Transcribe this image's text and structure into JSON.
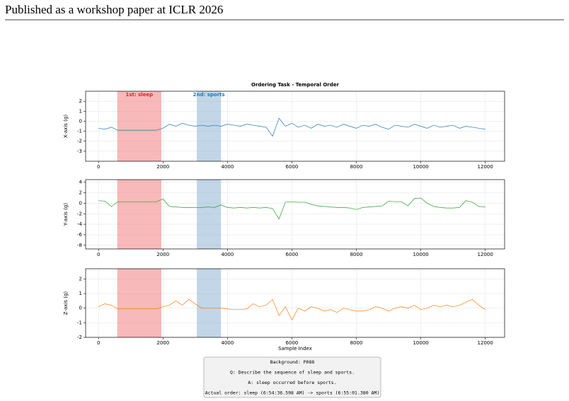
{
  "header": "Published as a workshop paper at ICLR 2026",
  "chart_data": [
    {
      "type": "line",
      "title": "Ordering Task - Temporal Order",
      "ylabel": "X-axis (g)",
      "color": "#1f77b4",
      "grid": true,
      "x": [
        0,
        200,
        400,
        600,
        800,
        1000,
        1200,
        1400,
        1600,
        1800,
        2000,
        2200,
        2400,
        2600,
        2800,
        3000,
        3200,
        3400,
        3600,
        3800,
        4000,
        4200,
        4400,
        4600,
        4800,
        5000,
        5200,
        5400,
        5600,
        5800,
        6000,
        6200,
        6400,
        6600,
        6800,
        7000,
        7200,
        7400,
        7600,
        7800,
        8000,
        8200,
        8400,
        8600,
        8800,
        9000,
        9200,
        9400,
        9600,
        9800,
        10000,
        10200,
        10400,
        10600,
        10800,
        11000,
        11200,
        11400,
        11600,
        11800,
        12000
      ],
      "values": [
        -0.7,
        -0.8,
        -0.6,
        -0.9,
        -0.9,
        -0.9,
        -0.9,
        -0.9,
        -0.9,
        -0.9,
        -0.7,
        -0.3,
        -0.5,
        -0.2,
        -0.4,
        -0.5,
        -0.4,
        -0.5,
        -0.4,
        -0.5,
        -0.3,
        -0.4,
        -0.5,
        -0.3,
        -0.4,
        -0.5,
        -0.6,
        -1.5,
        0.3,
        -0.5,
        -0.2,
        -0.6,
        -0.4,
        -0.7,
        -0.3,
        -0.5,
        -0.4,
        -0.6,
        -0.3,
        -0.5,
        -0.7,
        -0.4,
        -0.5,
        -0.3,
        -0.6,
        -0.8,
        -0.4,
        -0.5,
        -0.6,
        -0.3,
        -0.5,
        -0.7,
        -0.4,
        -0.6,
        -0.5,
        -0.4,
        -0.7,
        -0.5,
        -0.6,
        -0.7,
        -0.8
      ],
      "xlim": [
        -400,
        12600
      ],
      "xticks": [
        0,
        2000,
        4000,
        6000,
        8000,
        10000,
        12000
      ],
      "ylim": [
        -4,
        3
      ],
      "yticks": [
        -3,
        -2,
        -1,
        0,
        1,
        2
      ],
      "spans": [
        {
          "start": 580,
          "end": 1950,
          "color": "#f08080",
          "label": "1st: sleep",
          "label_color": "#d62728"
        },
        {
          "start": 3050,
          "end": 3800,
          "color": "#8fb4d6",
          "label": "2nd: sports",
          "label_color": "#1f77b4"
        }
      ]
    },
    {
      "type": "line",
      "ylabel": "Y-axis (g)",
      "color": "#2ca02c",
      "grid": true,
      "x": [
        0,
        200,
        400,
        600,
        800,
        1000,
        1200,
        1400,
        1600,
        1800,
        2000,
        2200,
        2400,
        2600,
        2800,
        3000,
        3200,
        3400,
        3600,
        3800,
        4000,
        4200,
        4400,
        4600,
        4800,
        5000,
        5200,
        5400,
        5600,
        5800,
        6000,
        6200,
        6400,
        6600,
        6800,
        7000,
        7200,
        7400,
        7600,
        7800,
        8000,
        8200,
        8400,
        8600,
        8800,
        9000,
        9200,
        9400,
        9600,
        9800,
        10000,
        10200,
        10400,
        10600,
        10800,
        11000,
        11200,
        11400,
        11600,
        11800,
        12000
      ],
      "values": [
        0.5,
        0.4,
        -0.6,
        0.3,
        0.3,
        0.3,
        0.3,
        0.3,
        0.3,
        0.3,
        0.8,
        -0.6,
        -0.7,
        -0.8,
        -0.8,
        -0.8,
        -0.8,
        -0.7,
        -0.8,
        -0.3,
        -0.8,
        -0.9,
        -0.8,
        -0.9,
        -0.8,
        -0.9,
        -0.8,
        -1.0,
        -3.0,
        0.2,
        0.3,
        0.2,
        0.2,
        -0.2,
        -0.5,
        -0.6,
        -0.7,
        -0.8,
        -0.8,
        -0.9,
        -1.2,
        -0.8,
        -0.7,
        -0.6,
        -0.5,
        0.4,
        0.3,
        0.3,
        -0.5,
        0.9,
        1.0,
        0.0,
        -0.6,
        -0.8,
        -0.9,
        -0.9,
        -0.8,
        0.5,
        0.2,
        -0.6,
        -0.7
      ],
      "xlim": [
        -400,
        12600
      ],
      "xticks": [
        0,
        2000,
        4000,
        6000,
        8000,
        10000,
        12000
      ],
      "ylim": [
        -8.7,
        4.5
      ],
      "yticks": [
        -8,
        -6,
        -4,
        -2,
        0,
        2,
        4
      ],
      "spans": [
        {
          "start": 580,
          "end": 1950,
          "color": "#f08080"
        },
        {
          "start": 3050,
          "end": 3800,
          "color": "#8fb4d6"
        }
      ]
    },
    {
      "type": "line",
      "ylabel": "Z-axis (g)",
      "xlabel": "Sample Index",
      "color": "#ff7f0e",
      "grid": true,
      "x": [
        0,
        200,
        400,
        600,
        800,
        1000,
        1200,
        1400,
        1600,
        1800,
        2000,
        2200,
        2400,
        2600,
        2800,
        3000,
        3200,
        3400,
        3600,
        3800,
        4000,
        4200,
        4400,
        4600,
        4800,
        5000,
        5200,
        5400,
        5600,
        5800,
        6000,
        6200,
        6400,
        6600,
        6800,
        7000,
        7200,
        7400,
        7600,
        7800,
        8000,
        8200,
        8400,
        8600,
        8800,
        9000,
        9200,
        9400,
        9600,
        9800,
        10000,
        10200,
        10400,
        10600,
        10800,
        11000,
        11200,
        11400,
        11600,
        11800,
        12000
      ],
      "values": [
        0.1,
        0.3,
        0.2,
        -0.05,
        -0.05,
        -0.05,
        -0.05,
        -0.05,
        -0.05,
        -0.05,
        0.1,
        0.2,
        0.5,
        0.2,
        0.6,
        0.3,
        0.0,
        0.0,
        0.0,
        0.0,
        -0.05,
        -0.1,
        -0.1,
        -0.05,
        0.3,
        0.1,
        0.2,
        0.6,
        -0.5,
        0.1,
        -0.8,
        0.0,
        -0.2,
        0.1,
        0.0,
        -0.2,
        -0.1,
        -0.3,
        0.0,
        -0.1,
        -0.2,
        -0.2,
        -0.1,
        0.1,
        0.0,
        -0.2,
        0.0,
        0.1,
        0.0,
        0.2,
        -0.1,
        0.0,
        0.2,
        0.1,
        0.2,
        0.1,
        0.2,
        0.4,
        0.6,
        0.2,
        -0.1
      ],
      "xlim": [
        -400,
        12600
      ],
      "xticks": [
        0,
        2000,
        4000,
        6000,
        8000,
        10000,
        12000
      ],
      "ylim": [
        -2,
        2.7
      ],
      "yticks": [
        -2,
        -1,
        0,
        1,
        2
      ],
      "spans": [
        {
          "start": 580,
          "end": 1950,
          "color": "#f08080"
        },
        {
          "start": 3050,
          "end": 3800,
          "color": "#8fb4d6"
        }
      ]
    }
  ],
  "caption_box": [
    "Background: P088",
    "Q: Describe the sequence of sleep and sports.",
    "A: sleep occurred before sports.",
    "Actual order: sleep (6:54:36.598 AM) -> sports (6:55:01.380 AM)"
  ]
}
